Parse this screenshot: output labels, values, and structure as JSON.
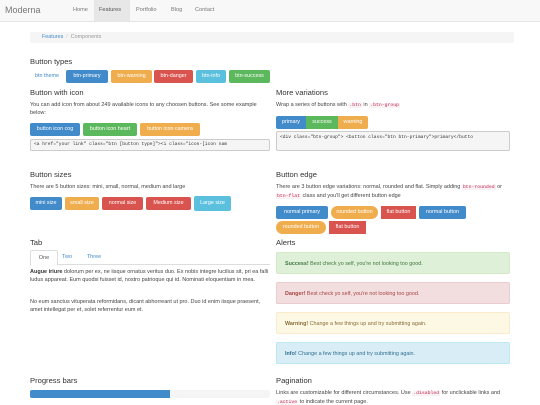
{
  "navbar": {
    "brand": "Moderna",
    "links": [
      "Home",
      "Features",
      "Portfolio",
      "Blog",
      "Contact"
    ]
  },
  "breadcrumb": [
    "Features",
    "Components"
  ],
  "button_types": {
    "title": "Button types",
    "buttons": [
      "btn theme",
      "btn-primary",
      "btn-warning",
      "btn-danger",
      "btn-info",
      "btn-success"
    ]
  },
  "button_icon": {
    "title": "Button with icon",
    "text": "You can add icon from about 249 available icons to any choosen buttons. See some example below:",
    "buttons": [
      "button icon cog",
      "button icon heart",
      "button icon camera"
    ],
    "code": "<a href=\"your link\" class=\"btn [button type]\"><i class=\"icon-[icon nam"
  },
  "more_variations": {
    "title": "More variations",
    "text": [
      "Wrap a series of buttons with ",
      ".btn",
      " in ",
      ".btn-group"
    ],
    "buttons": [
      "primary",
      "success",
      "warning"
    ],
    "code": "<div class=\"btn-group\"> <button class=\"btn btn-primary\">primary</butto"
  },
  "button_sizes": {
    "title": "Button sizes",
    "text": "There are 5 button sizes: mini, small, normal, medium and large",
    "buttons": [
      "mini size",
      "small size",
      "normal size",
      "Medium size",
      "Large size"
    ]
  },
  "button_edge": {
    "title": "Button edge",
    "text": [
      "There are 3 button edge variations: normal, rounded and flat. Simply adding ",
      "btn-rounded",
      " or ",
      "btn-flat",
      " class and you'll get different button edge"
    ],
    "buttons": [
      "normal primary",
      "rounded button",
      "flat button",
      "normal button",
      "rounded button",
      "flat button"
    ]
  },
  "tab": {
    "title": "Tab",
    "tabs": [
      "One",
      "Two",
      "Three"
    ],
    "paragraphs": [
      {
        "strong": "Augue iriure",
        "text": " dolorum per ex, ne iisque ornatus veritus duo. Ex nobis integre lucilius sit, pri ea falli ludus appareat. Eum quodsi fuisset id, nostro patrioque qui id. Nominati eloquentiam in mea."
      },
      {
        "text": "No eum sanctus vituperata reformidans, dicant abhorreant ut pro. Duo id enim iisque praesent, amet intellegat per et, solet referrentur eum et."
      }
    ]
  },
  "alerts": {
    "title": "Alerts",
    "items": [
      {
        "strong": "Success!",
        "text": " Best check yo self, you're not looking too good."
      },
      {
        "strong": "Danger!",
        "text": " Best check yo self, you're not looking too good."
      },
      {
        "strong": "Warning!",
        "text": " Change a few things up and try submitting again."
      },
      {
        "strong": "Info!",
        "text": " Change a few things up and try submitting again."
      }
    ]
  },
  "progress": {
    "title": "Progress bars"
  },
  "pagination": {
    "title": "Pagination",
    "text": [
      "Links are customizable for different circumstances. Use ",
      ".disabled",
      " for unclickable links and ",
      ".active",
      " to indicate the current page."
    ]
  }
}
